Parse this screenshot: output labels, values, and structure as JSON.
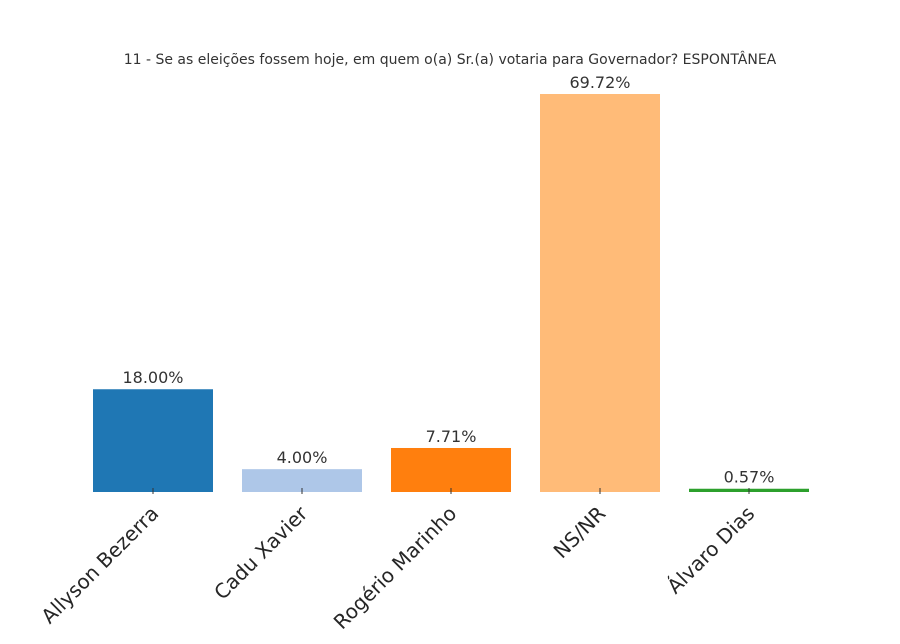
{
  "chart_data": {
    "type": "bar",
    "title": "11 - Se as eleições fossem hoje, em quem o(a) Sr.(a) votaria para Governador? ESPONTÂNEA",
    "xlabel": "",
    "ylabel": "",
    "categories": [
      "Allyson Bezerra",
      "Cadu Xavier",
      "Rogério Marinho",
      "NS/NR",
      "Álvaro Dias"
    ],
    "values": [
      18.0,
      4.0,
      7.71,
      69.72,
      0.57
    ],
    "value_labels": [
      "18.00%",
      "4.00%",
      "7.71%",
      "69.72%",
      "0.57%"
    ],
    "colors": [
      "#1f77b4",
      "#aec7e8",
      "#ff7f0e",
      "#ffbb78",
      "#2ca02c"
    ],
    "ylim": [
      0,
      69.72
    ],
    "grid": false,
    "legend": "none"
  }
}
